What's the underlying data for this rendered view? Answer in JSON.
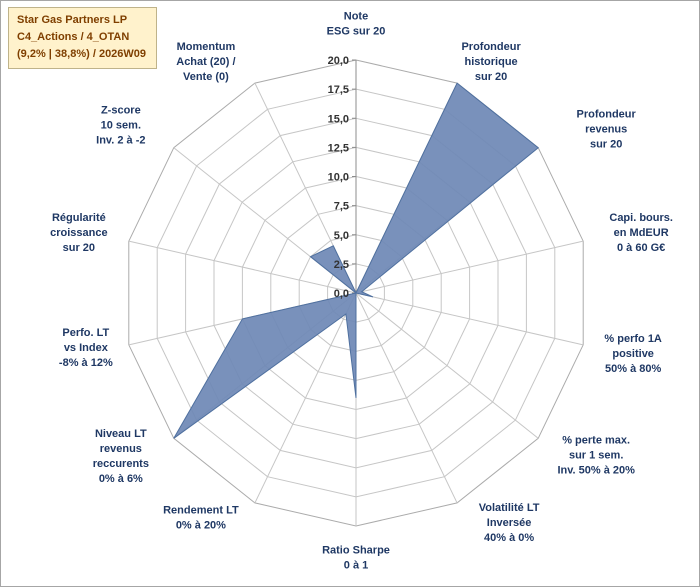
{
  "legend": {
    "lines": [
      "Star Gas Partners LP",
      "C4_Actions / 4_OTAN",
      "(9,2% | 38,8%) / 2026W09"
    ],
    "bg": "#FFF2CC",
    "border": "#BFB38A",
    "text_color": "#7F3F00"
  },
  "chart_data": {
    "type": "radar",
    "title": "",
    "categories": [
      [
        "Note",
        "ESG sur 20"
      ],
      [
        "Profondeur",
        "historique",
        "sur 20"
      ],
      [
        "Profondeur",
        "revenus",
        "sur 20"
      ],
      [
        "Capi. bours.",
        "en MdEUR",
        "0 à 60 G€"
      ],
      [
        "% perfo 1A",
        "positive",
        "50% à 80%"
      ],
      [
        "% perte max.",
        "sur 1 sem.",
        "Inv. 50% à 20%"
      ],
      [
        "Volatilité LT",
        "Inversée",
        "40% à 0%"
      ],
      [
        "Ratio Sharpe",
        "0 à 1"
      ],
      [
        "Rendement LT",
        "0% à 20%"
      ],
      [
        "Niveau LT",
        "revenus",
        "reccurents",
        "0% à 6%"
      ],
      [
        "Perfo. LT",
        "vs Index",
        "-8% à 12%"
      ],
      [
        "Régularité",
        "croissance",
        "sur 20"
      ],
      [
        "Z-score",
        "10 sem.",
        "Inv. 2 à -2"
      ],
      [
        "Momentum",
        "Achat (20) /",
        "Vente (0)"
      ]
    ],
    "series": [
      {
        "name": "Star Gas Partners LP",
        "values": [
          0,
          20,
          20,
          0.5,
          1.5,
          0,
          0,
          9,
          2,
          20,
          10,
          0,
          5,
          4.5
        ]
      }
    ],
    "axis": {
      "min": 0,
      "max": 20,
      "step": 2.5,
      "tick_labels": [
        "0,0",
        "2,5",
        "5,0",
        "7,5",
        "10,0",
        "12,5",
        "15,0",
        "17,5",
        "20,0"
      ]
    },
    "grid": true,
    "legend_position": "none",
    "colors": {
      "fill": "#6E88B5",
      "fill_opacity": 0.92,
      "stroke": "#4F709F",
      "grid": "#C6C6C6",
      "outer_ring": "#ABABAB",
      "axis_line": "#8C8C8C",
      "tick_text": "#333333",
      "label_text": "#1F3864"
    }
  }
}
